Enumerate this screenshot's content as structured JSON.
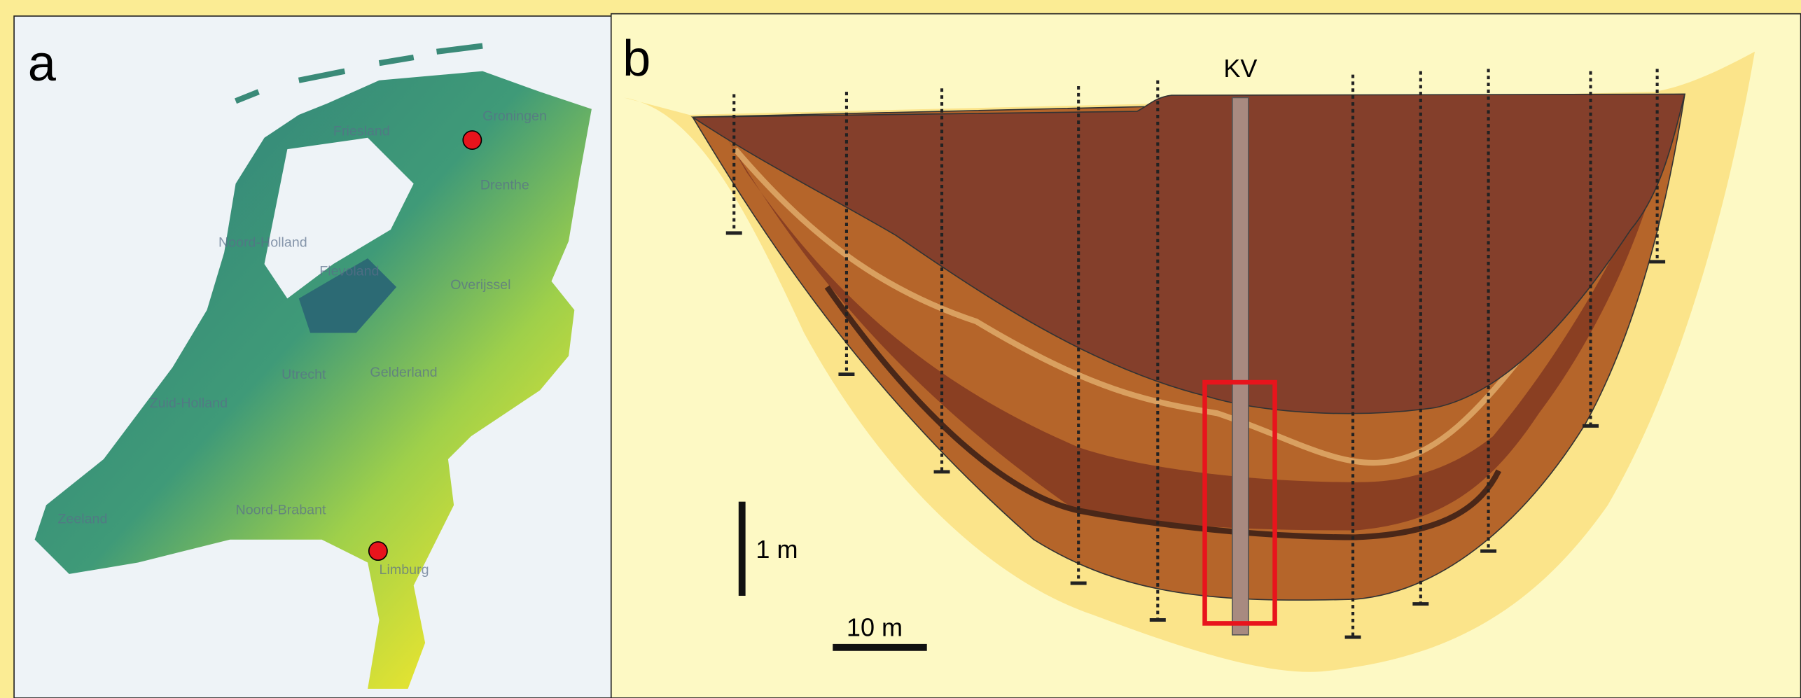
{
  "panel_a": {
    "label": "a",
    "map_labels": [
      "Groningen",
      "Friesland",
      "Drenthe",
      "Noord-Holland",
      "Flevoland",
      "Overijssel",
      "Utrecht",
      "Gelderland",
      "Zuid-Holland",
      "Noord-Brabant",
      "Zeeland",
      "Limburg"
    ]
  },
  "panel_b": {
    "label": "b",
    "borehole": "KV",
    "vertical_scale": "1 m",
    "horizontal_scale": "10 m"
  }
}
